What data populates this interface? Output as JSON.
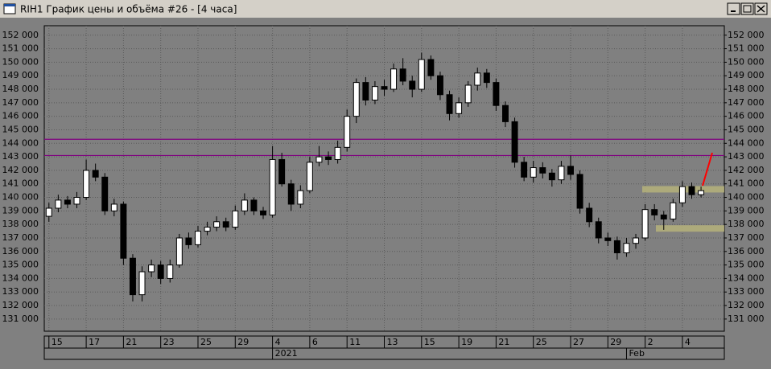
{
  "chart_data": {
    "type": "candlestick",
    "title": "RIH1 График цены и объёма #26 - [4 часа]",
    "open": [
      138600,
      139200,
      139800,
      139500,
      140000,
      142000,
      141500,
      139000,
      139500,
      135500,
      132800,
      134500,
      135000,
      134000,
      135000,
      137000,
      136500,
      137500,
      137800,
      138200,
      137800,
      139000,
      139800,
      139000,
      138700,
      142800,
      141000,
      139500,
      140500,
      142600,
      143000,
      142800,
      143700,
      146000,
      148500,
      147200,
      148200,
      148000,
      149500,
      148600,
      148000,
      150200,
      149000,
      147600,
      146200,
      147000,
      148300,
      149200,
      148500,
      146800,
      145600,
      142600,
      141500,
      142200,
      141800,
      141300,
      142300,
      141700,
      139200,
      138200,
      137000,
      136800,
      135900,
      136600,
      137000,
      139100,
      138700,
      138400,
      139600,
      140800,
      140200
    ],
    "high": [
      139600,
      140200,
      140100,
      140400,
      142800,
      142500,
      141800,
      139900,
      139700,
      135800,
      134900,
      135400,
      135300,
      135400,
      137300,
      137400,
      137900,
      138200,
      138600,
      138500,
      139400,
      140300,
      140000,
      139300,
      143800,
      143300,
      141300,
      140900,
      143000,
      143800,
      143400,
      144200,
      146500,
      148800,
      148900,
      148600,
      148700,
      149900,
      150300,
      149000,
      150700,
      150500,
      149300,
      147900,
      147400,
      148600,
      149600,
      149500,
      148800,
      147100,
      145900,
      143000,
      142700,
      142600,
      142100,
      142700,
      143100,
      142000,
      139600,
      138500,
      137400,
      137100,
      137000,
      137300,
      139500,
      139500,
      139000,
      139900,
      141200,
      141100,
      140800
    ],
    "low": [
      138200,
      138900,
      139200,
      139200,
      139800,
      141200,
      138700,
      138600,
      135000,
      132300,
      132300,
      134100,
      133600,
      133700,
      134800,
      136200,
      136300,
      137200,
      137500,
      137500,
      137600,
      138700,
      138700,
      138400,
      138500,
      140800,
      139000,
      139200,
      140300,
      142300,
      142400,
      142500,
      143400,
      145500,
      146800,
      146900,
      147500,
      147800,
      148300,
      147400,
      147800,
      148700,
      147200,
      145700,
      145900,
      146700,
      147900,
      148100,
      146400,
      145200,
      142200,
      141200,
      141100,
      141400,
      140800,
      141000,
      141300,
      138800,
      137800,
      136600,
      136400,
      135400,
      135600,
      136200,
      136800,
      138300,
      137600,
      138200,
      139300,
      139900,
      140000
    ],
    "close": [
      139200,
      139800,
      139500,
      140000,
      142000,
      141500,
      139000,
      139500,
      135500,
      132800,
      134500,
      135000,
      134000,
      135000,
      137000,
      136500,
      137500,
      137800,
      138200,
      137800,
      139000,
      139800,
      139000,
      138700,
      142800,
      141000,
      139500,
      140500,
      142600,
      143000,
      142800,
      143700,
      146000,
      148500,
      147200,
      148200,
      148000,
      149500,
      148600,
      148000,
      150200,
      149000,
      147600,
      146200,
      147000,
      148300,
      149200,
      148500,
      146800,
      145600,
      142600,
      141500,
      142200,
      141800,
      141300,
      142300,
      141700,
      139200,
      138200,
      137000,
      136800,
      135900,
      136600,
      137000,
      139100,
      138700,
      138400,
      139600,
      140800,
      140200,
      140500
    ],
    "up_color": "#ffffff",
    "down_color": "#000000",
    "ylim": [
      130100,
      152700
    ],
    "yticks": [
      {
        "value": 131000,
        "label": "131 000"
      },
      {
        "value": 132000,
        "label": "132 000"
      },
      {
        "value": 133000,
        "label": "133 000"
      },
      {
        "value": 134000,
        "label": "134 000"
      },
      {
        "value": 135000,
        "label": "135 000"
      },
      {
        "value": 136000,
        "label": "136 000"
      },
      {
        "value": 137000,
        "label": "137 000"
      },
      {
        "value": 138000,
        "label": "138 000"
      },
      {
        "value": 139000,
        "label": "139 000"
      },
      {
        "value": 140000,
        "label": "140 000"
      },
      {
        "value": 141000,
        "label": "141 000"
      },
      {
        "value": 142000,
        "label": "142 000"
      },
      {
        "value": 143000,
        "label": "143 000"
      },
      {
        "value": 144000,
        "label": "144 000"
      },
      {
        "value": 145000,
        "label": "145 000"
      },
      {
        "value": 146000,
        "label": "146 000"
      },
      {
        "value": 147000,
        "label": "147 000"
      },
      {
        "value": 148000,
        "label": "148 000"
      },
      {
        "value": 149000,
        "label": "149 000"
      },
      {
        "value": 150000,
        "label": "150 000"
      },
      {
        "value": 151000,
        "label": "151 000"
      },
      {
        "value": 152000,
        "label": "152 000"
      }
    ],
    "xlim": [
      -0.5,
      72.5
    ],
    "xticks": [
      {
        "value": 0,
        "label": "15"
      },
      {
        "value": 4,
        "label": "17"
      },
      {
        "value": 8,
        "label": "21"
      },
      {
        "value": 12,
        "label": "23"
      },
      {
        "value": 16,
        "label": "25"
      },
      {
        "value": 20,
        "label": "29"
      },
      {
        "value": 24,
        "label": "4"
      },
      {
        "value": 28,
        "label": "6"
      },
      {
        "value": 32,
        "label": "11"
      },
      {
        "value": 36,
        "label": "13"
      },
      {
        "value": 40,
        "label": "15"
      },
      {
        "value": 44,
        "label": "19"
      },
      {
        "value": 48,
        "label": "21"
      },
      {
        "value": 52,
        "label": "25"
      },
      {
        "value": 56,
        "label": "27"
      },
      {
        "value": 60,
        "label": "29"
      },
      {
        "value": 64,
        "label": "2"
      },
      {
        "value": 68,
        "label": "4"
      }
    ],
    "period_labels": [
      {
        "value": 24,
        "label": "2021"
      },
      {
        "value": 62,
        "label": "Feb"
      }
    ],
    "grid": true,
    "hlines": {
      "values": [
        144300,
        143100
      ],
      "color": "#800080"
    },
    "zones": {
      "values": [
        140600,
        137700
      ],
      "color": "#b5b27a"
    }
  }
}
